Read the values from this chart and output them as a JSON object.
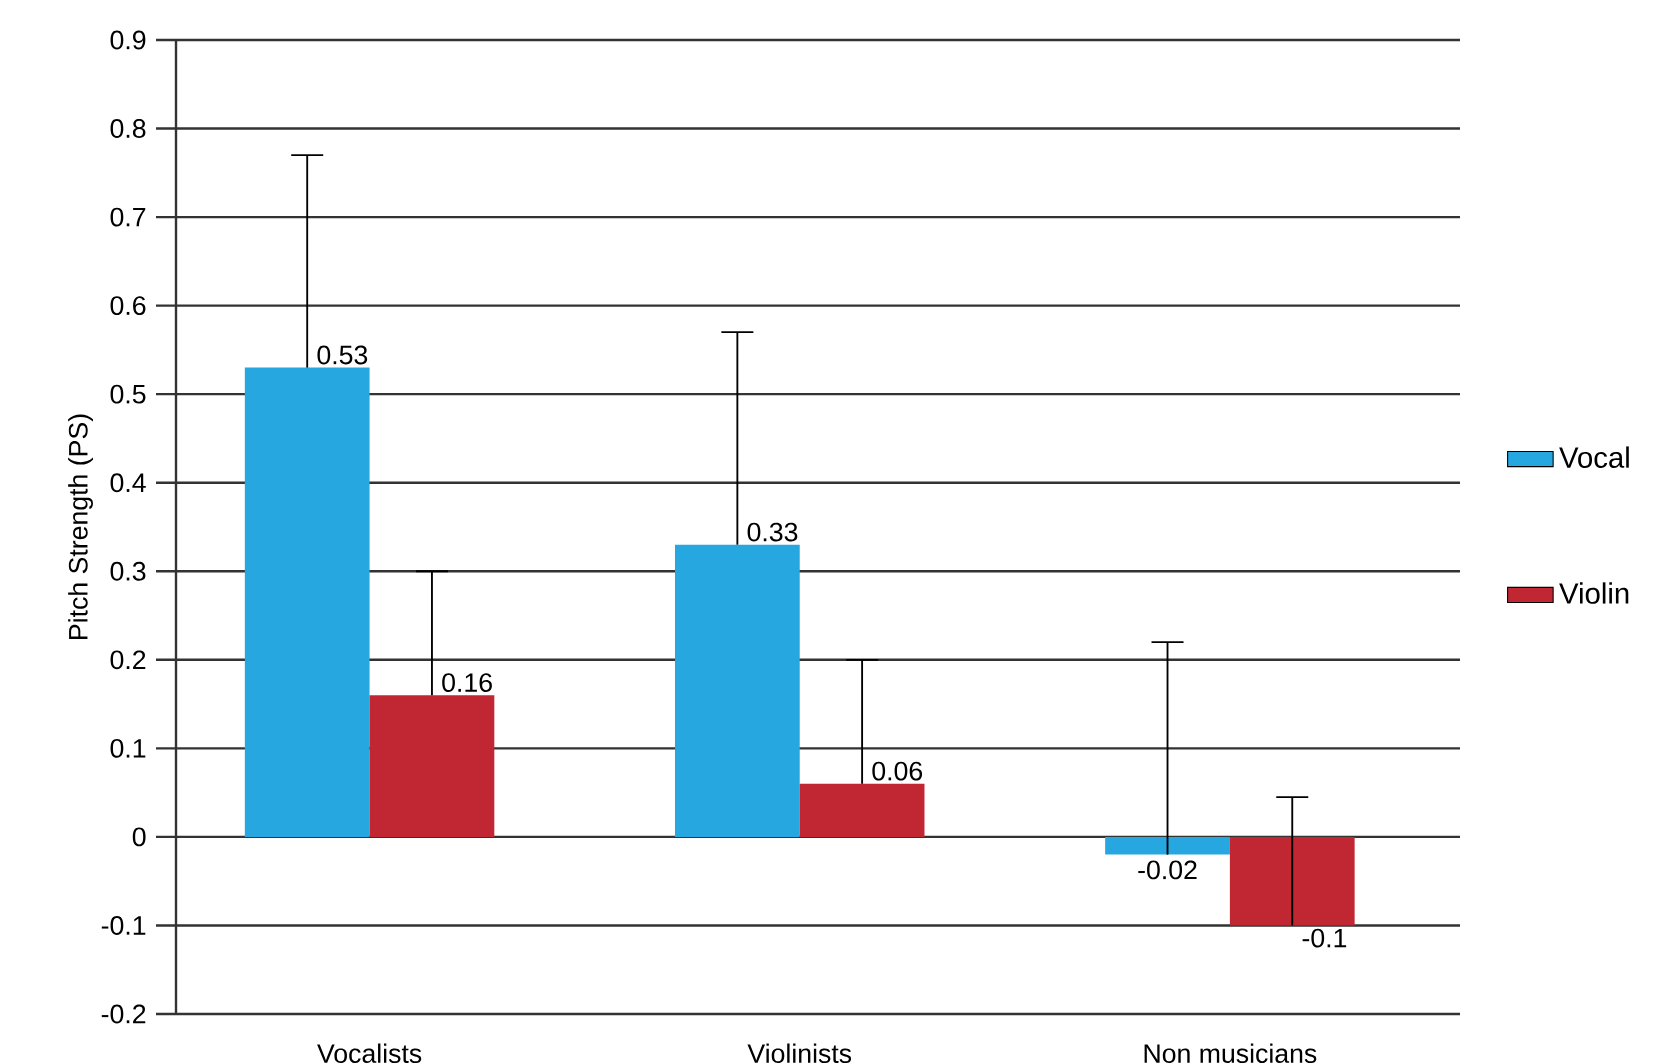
{
  "chart_data": {
    "type": "bar",
    "ylabel": "Pitch Strength (PS)",
    "categories": [
      "Vocalists",
      "Violinists",
      "Non musicians"
    ],
    "series": [
      {
        "name": "Vocal",
        "color": "#27a7e0",
        "values": [
          0.53,
          0.33,
          -0.02
        ],
        "errors": [
          [
            0.53,
            0.77
          ],
          [
            0.33,
            0.57
          ],
          [
            -0.02,
            0.22
          ]
        ]
      },
      {
        "name": "Violin",
        "color": "#c02733",
        "values": [
          0.16,
          0.06,
          -0.1
        ],
        "errors": [
          [
            0.16,
            0.3
          ],
          [
            0.06,
            0.2
          ],
          [
            -0.1,
            0.045
          ]
        ]
      }
    ],
    "ylim": [
      -0.2,
      0.9
    ],
    "yticks": [
      -0.2,
      -0.1,
      0,
      0.1,
      0.2,
      0.3,
      0.4,
      0.5,
      0.6,
      0.7,
      0.8,
      0.9
    ],
    "grid": "y",
    "legend": "right",
    "data_labels": true
  }
}
